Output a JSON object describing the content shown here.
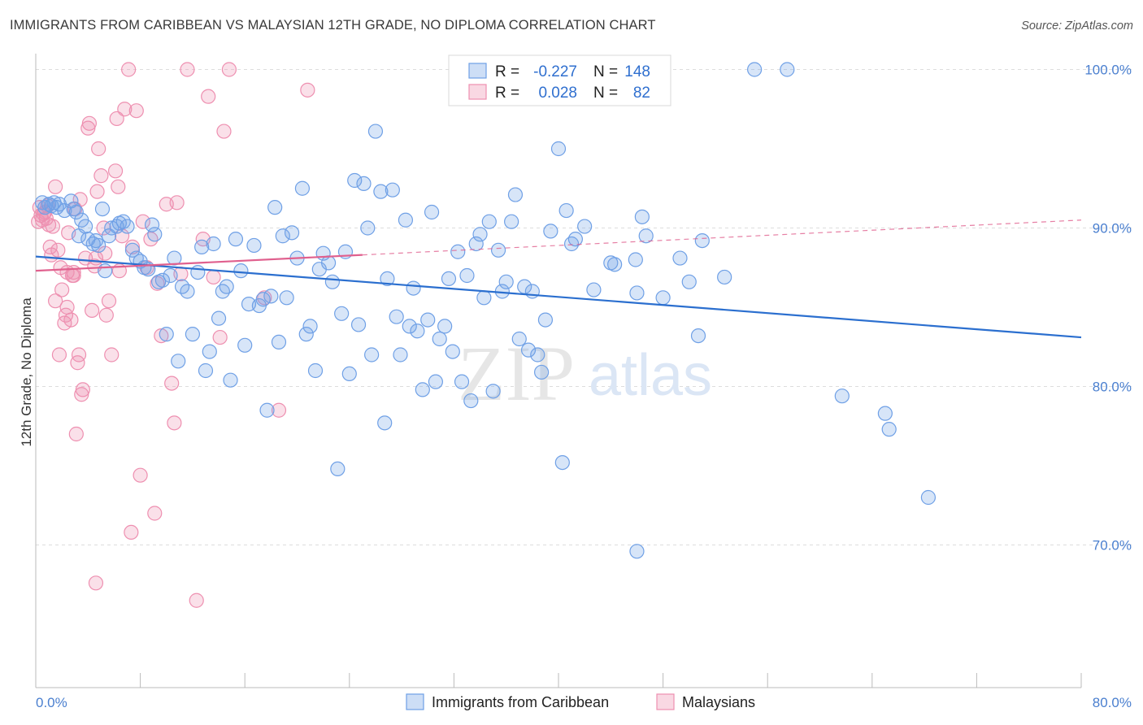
{
  "title": "IMMIGRANTS FROM CARIBBEAN VS MALAYSIAN 12TH GRADE, NO DIPLOMA CORRELATION CHART",
  "source": "Source: ZipAtlas.com",
  "watermark": {
    "zip": "ZIP",
    "atlas": "atlas"
  },
  "colors": {
    "blue": "#6fa0e6",
    "blue_fill": "rgba(111,160,230,0.28)",
    "blue_line": "#2b6fcf",
    "pink": "#ee8fb0",
    "pink_fill": "rgba(238,143,176,0.28)",
    "pink_line": "#e0608e",
    "tick_text": "#4a7fcf",
    "grid": "#dddddd"
  },
  "legend": {
    "rows": [
      {
        "r_label": "R =",
        "r_value": "-0.227",
        "n_label": "N =",
        "n_value": "148"
      },
      {
        "r_label": "R =",
        "r_value": "0.028",
        "n_label": "N =",
        "n_value": "82"
      }
    ]
  },
  "chart_data": {
    "type": "scatter",
    "title": "IMMIGRANTS FROM CARIBBEAN VS MALAYSIAN 12TH GRADE, NO DIPLOMA CORRELATION CHART",
    "xlabel": "",
    "ylabel": "12th Grade, No Diploma",
    "xlim": [
      0,
      80
    ],
    "ylim": [
      61,
      101
    ],
    "x_ticks": [
      "0.0%",
      "80.0%"
    ],
    "y_ticks": [
      {
        "value": 70,
        "label": "70.0%"
      },
      {
        "value": 80,
        "label": "80.0%"
      },
      {
        "value": 90,
        "label": "90.0%"
      },
      {
        "value": 100,
        "label": "100.0%"
      }
    ],
    "grid": "horizontal dashed",
    "legend_placement": "top-center",
    "series": [
      {
        "name": "Immigrants from Caribbean",
        "color": "blue",
        "trend": {
          "x": [
            0,
            80
          ],
          "y": [
            88.2,
            83.1
          ]
        },
        "points": [
          [
            0.5,
            91.6
          ],
          [
            0.7,
            91.3
          ],
          [
            1.0,
            91.5
          ],
          [
            1.2,
            91.4
          ],
          [
            1.4,
            91.6
          ],
          [
            1.6,
            91.3
          ],
          [
            1.8,
            91.5
          ],
          [
            2.2,
            91.1
          ],
          [
            2.7,
            91.7
          ],
          [
            2.9,
            91.2
          ],
          [
            3.1,
            91.0
          ],
          [
            3.3,
            89.5
          ],
          [
            3.5,
            90.5
          ],
          [
            3.8,
            90.1
          ],
          [
            4.0,
            89.3
          ],
          [
            4.4,
            89.0
          ],
          [
            4.6,
            89.2
          ],
          [
            4.8,
            88.9
          ],
          [
            5.1,
            91.2
          ],
          [
            5.3,
            87.3
          ],
          [
            5.6,
            89.5
          ],
          [
            5.8,
            90.0
          ],
          [
            6.2,
            90.1
          ],
          [
            6.4,
            90.3
          ],
          [
            6.7,
            90.4
          ],
          [
            7.0,
            90.1
          ],
          [
            7.4,
            88.6
          ],
          [
            7.7,
            88.1
          ],
          [
            8.0,
            87.9
          ],
          [
            8.3,
            87.5
          ],
          [
            8.6,
            87.4
          ],
          [
            8.9,
            90.2
          ],
          [
            9.1,
            89.6
          ],
          [
            9.4,
            86.6
          ],
          [
            9.7,
            86.7
          ],
          [
            10.0,
            83.3
          ],
          [
            10.3,
            87.0
          ],
          [
            10.6,
            88.1
          ],
          [
            10.9,
            81.6
          ],
          [
            11.2,
            86.3
          ],
          [
            11.6,
            86.0
          ],
          [
            12.0,
            83.3
          ],
          [
            12.4,
            87.2
          ],
          [
            12.7,
            88.8
          ],
          [
            13.0,
            81.0
          ],
          [
            13.3,
            82.2
          ],
          [
            13.6,
            89.0
          ],
          [
            14.0,
            84.3
          ],
          [
            14.3,
            86.0
          ],
          [
            14.6,
            86.3
          ],
          [
            14.9,
            80.4
          ],
          [
            15.3,
            89.3
          ],
          [
            15.7,
            87.3
          ],
          [
            16.0,
            82.6
          ],
          [
            16.3,
            85.2
          ],
          [
            16.7,
            88.9
          ],
          [
            17.1,
            85.1
          ],
          [
            17.4,
            85.5
          ],
          [
            17.7,
            78.5
          ],
          [
            18.0,
            85.7
          ],
          [
            18.3,
            91.3
          ],
          [
            18.6,
            82.8
          ],
          [
            18.9,
            89.5
          ],
          [
            19.2,
            85.6
          ],
          [
            19.6,
            89.7
          ],
          [
            20.0,
            88.1
          ],
          [
            20.4,
            92.5
          ],
          [
            20.7,
            83.3
          ],
          [
            21.0,
            83.8
          ],
          [
            21.4,
            81.0
          ],
          [
            21.7,
            87.4
          ],
          [
            22.0,
            88.4
          ],
          [
            22.4,
            87.8
          ],
          [
            22.7,
            86.6
          ],
          [
            23.1,
            74.8
          ],
          [
            23.4,
            84.6
          ],
          [
            23.7,
            88.5
          ],
          [
            24.0,
            80.8
          ],
          [
            24.4,
            93.0
          ],
          [
            24.7,
            83.9
          ],
          [
            25.1,
            92.8
          ],
          [
            25.4,
            90.0
          ],
          [
            25.7,
            82.0
          ],
          [
            26.0,
            96.1
          ],
          [
            26.4,
            92.3
          ],
          [
            26.7,
            77.7
          ],
          [
            26.9,
            86.8
          ],
          [
            27.3,
            92.4
          ],
          [
            27.6,
            84.4
          ],
          [
            27.9,
            82.0
          ],
          [
            28.3,
            90.5
          ],
          [
            28.6,
            83.8
          ],
          [
            28.9,
            86.2
          ],
          [
            29.2,
            83.5
          ],
          [
            29.6,
            79.8
          ],
          [
            30.0,
            84.2
          ],
          [
            30.3,
            91.0
          ],
          [
            30.6,
            80.3
          ],
          [
            30.9,
            83.0
          ],
          [
            31.3,
            83.8
          ],
          [
            31.6,
            86.8
          ],
          [
            31.9,
            82.2
          ],
          [
            32.3,
            88.5
          ],
          [
            32.6,
            80.3
          ],
          [
            33.0,
            87.0
          ],
          [
            33.3,
            79.1
          ],
          [
            33.7,
            89.0
          ],
          [
            34.0,
            89.6
          ],
          [
            34.3,
            85.6
          ],
          [
            34.7,
            90.4
          ],
          [
            35.0,
            79.7
          ],
          [
            35.4,
            88.6
          ],
          [
            35.7,
            86.0
          ],
          [
            36.0,
            86.6
          ],
          [
            36.4,
            90.4
          ],
          [
            36.7,
            92.1
          ],
          [
            37.0,
            83.0
          ],
          [
            37.4,
            86.3
          ],
          [
            37.7,
            82.3
          ],
          [
            38.0,
            86.0
          ],
          [
            38.4,
            82.0
          ],
          [
            38.7,
            80.9
          ],
          [
            39.0,
            84.2
          ],
          [
            39.4,
            89.8
          ],
          [
            40.0,
            95.0
          ],
          [
            40.3,
            75.2
          ],
          [
            40.6,
            91.1
          ],
          [
            41.0,
            89.0
          ],
          [
            41.3,
            89.3
          ],
          [
            42.0,
            90.1
          ],
          [
            42.7,
            86.1
          ],
          [
            44.0,
            87.8
          ],
          [
            44.3,
            87.7
          ],
          [
            45.9,
            88.0
          ],
          [
            46.0,
            85.9
          ],
          [
            46.4,
            90.7
          ],
          [
            46.7,
            89.5
          ],
          [
            48.0,
            85.6
          ],
          [
            49.3,
            88.1
          ],
          [
            50.0,
            86.6
          ],
          [
            50.7,
            83.2
          ],
          [
            51.0,
            89.2
          ],
          [
            52.7,
            86.9
          ],
          [
            55.0,
            100.0
          ],
          [
            57.5,
            100.0
          ],
          [
            61.7,
            79.4
          ],
          [
            65.0,
            78.3
          ],
          [
            65.3,
            77.3
          ],
          [
            68.3,
            73.0
          ],
          [
            46.0,
            69.6
          ]
        ]
      },
      {
        "name": "Malaysians",
        "color": "pink",
        "trend": {
          "x": [
            0,
            25
          ],
          "y": [
            87.3,
            88.3
          ]
        },
        "trend_dashed": {
          "x": [
            25,
            80
          ],
          "y": [
            88.3,
            90.5
          ]
        },
        "points": [
          [
            0.3,
            91.3
          ],
          [
            0.4,
            90.8
          ],
          [
            0.5,
            90.5
          ],
          [
            0.6,
            90.9
          ],
          [
            0.7,
            91.0
          ],
          [
            0.8,
            90.6
          ],
          [
            0.9,
            91.4
          ],
          [
            1.0,
            90.2
          ],
          [
            1.2,
            88.3
          ],
          [
            1.3,
            90.1
          ],
          [
            1.5,
            92.6
          ],
          [
            1.7,
            88.6
          ],
          [
            1.8,
            82.0
          ],
          [
            1.9,
            87.5
          ],
          [
            2.0,
            86.1
          ],
          [
            2.2,
            84.0
          ],
          [
            2.3,
            84.5
          ],
          [
            2.4,
            85.0
          ],
          [
            2.5,
            89.7
          ],
          [
            2.7,
            84.2
          ],
          [
            2.8,
            87.0
          ],
          [
            2.9,
            87.2
          ],
          [
            3.0,
            91.2
          ],
          [
            3.1,
            77.0
          ],
          [
            3.2,
            81.5
          ],
          [
            3.3,
            82.0
          ],
          [
            3.4,
            91.8
          ],
          [
            3.5,
            79.5
          ],
          [
            3.6,
            79.8
          ],
          [
            3.8,
            88.1
          ],
          [
            4.0,
            96.3
          ],
          [
            4.1,
            96.6
          ],
          [
            4.3,
            84.8
          ],
          [
            4.5,
            87.6
          ],
          [
            4.6,
            88.1
          ],
          [
            4.7,
            92.3
          ],
          [
            4.8,
            95.0
          ],
          [
            5.0,
            93.3
          ],
          [
            5.2,
            90.0
          ],
          [
            5.4,
            84.5
          ],
          [
            5.6,
            85.4
          ],
          [
            5.8,
            82.0
          ],
          [
            6.1,
            93.6
          ],
          [
            6.2,
            96.9
          ],
          [
            6.3,
            92.6
          ],
          [
            6.4,
            87.3
          ],
          [
            6.6,
            89.5
          ],
          [
            6.8,
            97.5
          ],
          [
            7.1,
            100.0
          ],
          [
            7.4,
            88.8
          ],
          [
            7.7,
            97.4
          ],
          [
            8.0,
            74.4
          ],
          [
            8.2,
            90.4
          ],
          [
            8.5,
            87.5
          ],
          [
            8.8,
            89.3
          ],
          [
            9.1,
            72.0
          ],
          [
            9.3,
            86.5
          ],
          [
            9.6,
            83.2
          ],
          [
            10.0,
            91.5
          ],
          [
            10.4,
            80.2
          ],
          [
            10.6,
            77.7
          ],
          [
            10.8,
            91.6
          ],
          [
            11.1,
            87.1
          ],
          [
            11.6,
            100.0
          ],
          [
            12.3,
            66.5
          ],
          [
            12.8,
            89.3
          ],
          [
            13.2,
            98.3
          ],
          [
            13.6,
            86.9
          ],
          [
            14.1,
            83.1
          ],
          [
            14.4,
            96.1
          ],
          [
            14.8,
            100.0
          ],
          [
            17.5,
            85.6
          ],
          [
            18.6,
            78.5
          ],
          [
            20.8,
            98.7
          ],
          [
            7.3,
            70.8
          ],
          [
            4.6,
            67.6
          ],
          [
            2.4,
            87.2
          ],
          [
            1.5,
            85.4
          ],
          [
            1.1,
            88.8
          ],
          [
            0.2,
            90.4
          ],
          [
            2.9,
            87.0
          ],
          [
            5.3,
            88.4
          ]
        ]
      }
    ]
  }
}
